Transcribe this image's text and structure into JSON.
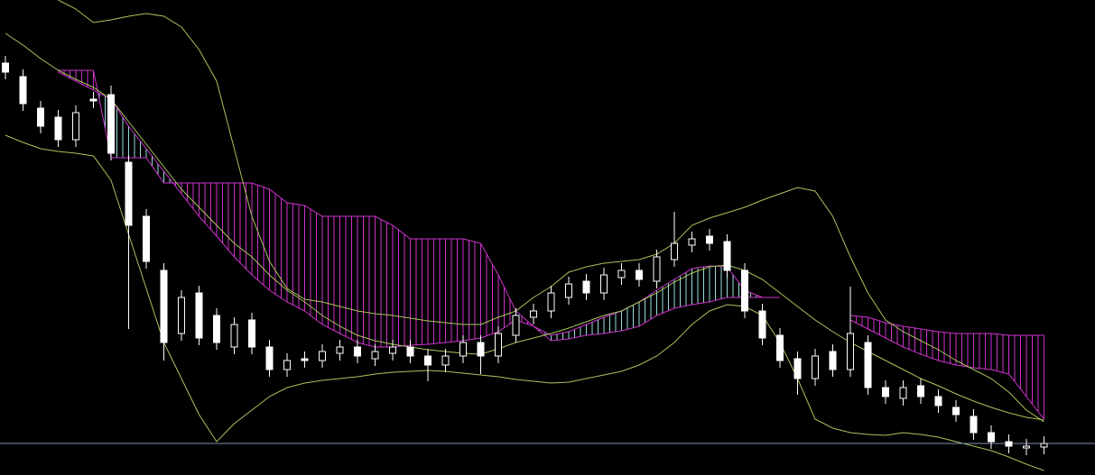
{
  "chart_data": {
    "type": "candlestick",
    "categories": [
      null,
      null,
      null,
      null,
      null,
      null,
      null,
      null,
      null,
      null,
      null,
      null,
      null,
      null,
      null,
      null,
      null,
      null,
      null,
      null,
      null,
      null,
      null,
      null,
      null,
      null,
      null,
      null,
      null,
      null,
      null,
      null,
      null,
      null,
      null,
      null,
      null,
      null,
      null,
      null,
      null,
      null,
      null,
      null,
      null,
      null,
      null,
      null,
      null,
      null,
      null,
      null,
      null,
      null,
      null,
      null,
      null,
      null,
      null,
      null
    ],
    "open": [
      457,
      442,
      407,
      397,
      372,
      417,
      422,
      347,
      287,
      227,
      157,
      202,
      177,
      142,
      172,
      142,
      117,
      129,
      127,
      135,
      142,
      129,
      135,
      142,
      132,
      122,
      132,
      147,
      132,
      155,
      175,
      182,
      197,
      215,
      202,
      219,
      227,
      215,
      239,
      255,
      265,
      259,
      227,
      182,
      155,
      129,
      107,
      137,
      117,
      147,
      97,
      85,
      99,
      87,
      75,
      65,
      47,
      37,
      30,
      31
    ],
    "high": [
      465,
      450,
      415,
      405,
      410,
      425,
      432,
      355,
      295,
      235,
      205,
      210,
      185,
      175,
      180,
      150,
      135,
      137,
      145,
      150,
      150,
      145,
      150,
      150,
      140,
      140,
      155,
      155,
      165,
      185,
      190,
      210,
      220,
      223,
      230,
      235,
      235,
      250,
      292,
      270,
      273,
      267,
      235,
      190,
      163,
      137,
      140,
      145,
      209,
      155,
      105,
      105,
      107,
      95,
      83,
      73,
      55,
      45,
      40,
      43
    ],
    "low": [
      439,
      404,
      379,
      364,
      364,
      407,
      349,
      162,
      229,
      127,
      149,
      144,
      139,
      134,
      134,
      109,
      109,
      119,
      119,
      127,
      124,
      121,
      127,
      124,
      104,
      114,
      124,
      112,
      124,
      147,
      167,
      174,
      189,
      194,
      194,
      211,
      209,
      207,
      231,
      247,
      249,
      219,
      174,
      144,
      119,
      89,
      99,
      109,
      109,
      89,
      79,
      77,
      79,
      69,
      59,
      39,
      29,
      24,
      22,
      23
    ],
    "close": [
      447,
      412,
      387,
      372,
      402,
      415,
      357,
      277,
      237,
      147,
      197,
      152,
      147,
      167,
      142,
      117,
      127,
      127,
      137,
      142,
      132,
      137,
      142,
      132,
      122,
      132,
      147,
      132,
      157,
      177,
      182,
      202,
      212,
      202,
      222,
      227,
      217,
      242,
      257,
      262,
      257,
      227,
      182,
      152,
      127,
      107,
      132,
      117,
      157,
      97,
      87,
      97,
      87,
      77,
      67,
      47,
      37,
      32,
      32,
      35
    ],
    "up_color": "#000000",
    "down_color": "#ffffff",
    "wick_color": "#ffffff",
    "ylim": [
      0,
      527
    ],
    "bands": {
      "color": "#a8c45a",
      "upper": [
        null,
        null,
        null,
        527,
        517,
        502,
        505,
        509,
        512,
        509,
        497,
        472,
        437,
        362,
        287,
        237,
        207,
        195,
        192,
        187,
        182,
        179,
        177,
        174,
        171,
        169,
        167,
        167,
        175,
        182,
        197,
        209,
        225,
        231,
        235,
        237,
        239,
        245,
        257,
        277,
        285,
        291,
        297,
        305,
        312,
        319,
        315,
        287,
        242,
        202,
        172,
        159,
        149,
        139,
        127,
        117,
        107,
        92,
        72,
        59
      ],
      "middle": [
        490,
        477,
        462,
        449,
        439,
        430,
        417,
        392,
        367,
        342,
        317,
        297,
        277,
        257,
        242,
        222,
        205,
        192,
        177,
        165,
        155,
        149,
        145,
        142,
        139,
        137,
        135,
        134,
        140,
        147,
        152,
        157,
        163,
        170,
        177,
        182,
        192,
        202,
        214,
        224,
        231,
        233,
        227,
        217,
        202,
        187,
        172,
        159,
        147,
        137,
        127,
        117,
        107,
        99,
        90,
        82,
        75,
        69,
        64,
        61
      ],
      "lower": [
        377,
        369,
        362,
        359,
        357,
        354,
        327,
        267,
        207,
        147,
        107,
        67,
        37,
        57,
        72,
        87,
        97,
        102,
        105,
        107,
        109,
        112,
        114,
        115,
        116,
        115,
        113,
        111,
        109,
        106,
        104,
        102,
        103,
        107,
        111,
        115,
        122,
        132,
        147,
        167,
        182,
        189,
        187,
        177,
        147,
        107,
        62,
        52,
        47,
        45,
        44,
        47,
        45,
        42,
        37,
        32,
        27,
        20,
        12,
        5
      ]
    },
    "cloud": {
      "bear_color": "#cc33cc",
      "bull_color": "#99dddd",
      "span_a": [
        null,
        null,
        null,
        447,
        437,
        427,
        417,
        387,
        362,
        337,
        312,
        287,
        265,
        242,
        222,
        205,
        192,
        182,
        167,
        157,
        147,
        142,
        142,
        144,
        145,
        147,
        149,
        152,
        159,
        172,
        165,
        155,
        159,
        167,
        175,
        182,
        192,
        205,
        217,
        229,
        232,
        231,
        205,
        197,
        197,
        null,
        null,
        null,
        172,
        162,
        152,
        142,
        134,
        127,
        122,
        119,
        117,
        112,
        87,
        62
      ],
      "span_b": [
        null,
        null,
        null,
        449,
        449,
        449,
        352,
        352,
        352,
        324,
        324,
        324,
        324,
        324,
        324,
        317,
        302,
        299,
        287,
        287,
        287,
        287,
        277,
        262,
        262,
        262,
        262,
        257,
        222,
        182,
        165,
        149,
        151,
        155,
        157,
        160,
        165,
        177,
        185,
        189,
        192,
        197,
        197,
        197,
        197,
        null,
        null,
        null,
        177,
        175,
        169,
        165,
        162,
        159,
        157,
        157,
        157,
        155,
        155,
        155
      ]
    },
    "hline": 35,
    "hline_color": "#7f8fb0",
    "background": "#000000"
  }
}
